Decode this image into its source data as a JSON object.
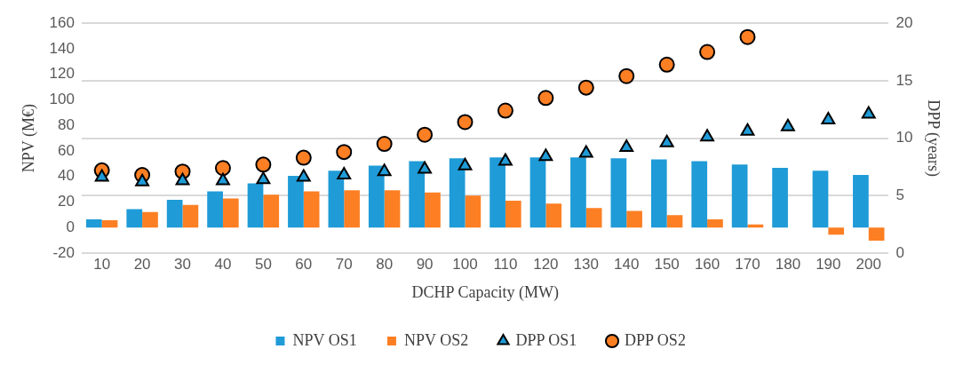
{
  "chart_data": {
    "type": "bar",
    "xlabel": "DCHP Capacity (MW)",
    "ylabel": "NPV (M€)",
    "y2label": "DPP (years)",
    "categories": [
      "10",
      "20",
      "30",
      "40",
      "50",
      "60",
      "70",
      "80",
      "90",
      "100",
      "110",
      "120",
      "130",
      "140",
      "150",
      "160",
      "170",
      "180",
      "190",
      "200"
    ],
    "series": [
      {
        "name": "NPV OS1",
        "color": "#1f9bd7",
        "values": [
          6.5,
          14.5,
          21.8,
          28.3,
          34.6,
          40.5,
          44.5,
          48.5,
          51.9,
          54.2,
          55.0,
          55.0,
          55.0,
          54.2,
          53.3,
          51.9,
          49.3,
          46.8,
          44.5,
          41.2
        ]
      },
      {
        "name": "NPV OS2",
        "color": "#fd7f23",
        "values": [
          5.7,
          12.2,
          17.8,
          22.7,
          25.8,
          28.3,
          29.2,
          29.2,
          27.5,
          25.0,
          21.0,
          18.7,
          15.3,
          13.0,
          9.7,
          6.5,
          2.5,
          null,
          -5.5,
          -10.3
        ]
      },
      {
        "name": "DPP OS1",
        "type": "scatter",
        "axis": "y2",
        "marker": "triangle",
        "color": "#1f9bd7",
        "values": [
          6.6,
          6.2,
          6.3,
          6.3,
          6.4,
          6.6,
          6.8,
          7.1,
          7.3,
          7.6,
          8.0,
          8.4,
          8.7,
          9.2,
          9.6,
          10.1,
          10.6,
          11.0,
          11.6,
          12.1
        ]
      },
      {
        "name": "DPP OS2",
        "type": "scatter",
        "axis": "y2",
        "marker": "circle",
        "color": "#fd7f23",
        "values": [
          7.2,
          6.8,
          7.1,
          7.4,
          7.7,
          8.3,
          8.8,
          9.5,
          10.3,
          11.4,
          12.4,
          13.5,
          14.4,
          15.4,
          16.4,
          17.5,
          18.8,
          null,
          null,
          null
        ]
      }
    ],
    "ylim": [
      -20,
      160
    ],
    "yticks": [
      -20,
      0,
      20,
      40,
      60,
      80,
      100,
      120,
      140,
      160
    ],
    "y2lim": [
      0,
      20
    ],
    "y2ticks": [
      0,
      5,
      10,
      15,
      20
    ],
    "grid": "y2",
    "legend": "bottom"
  }
}
